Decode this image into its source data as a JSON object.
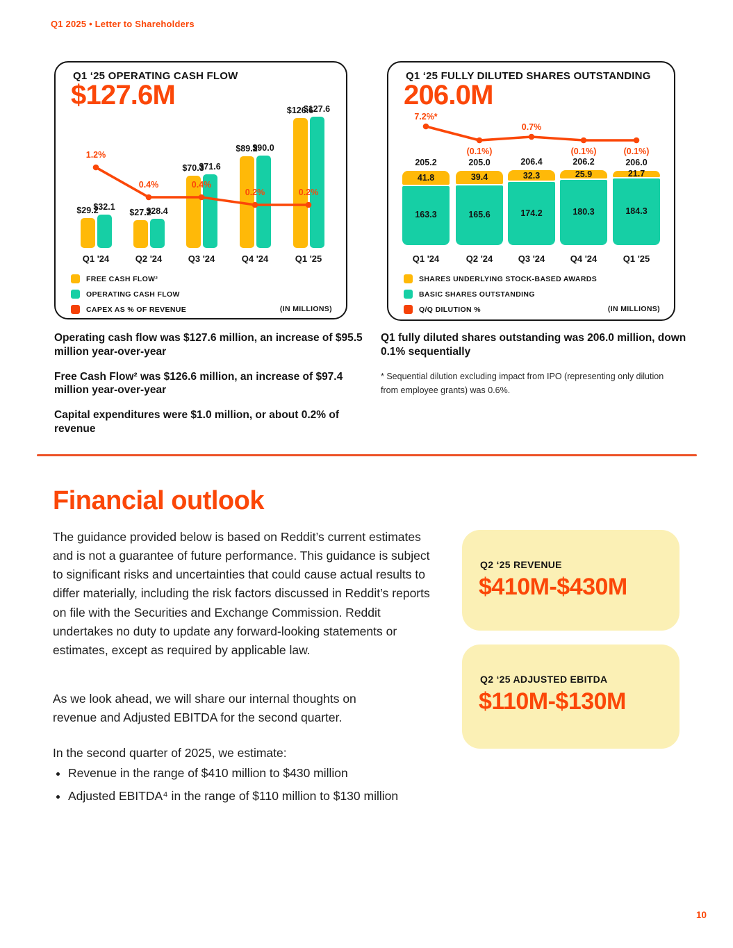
{
  "page": {
    "header": "Q1 2025 • Letter to Shareholders",
    "page_number": "10"
  },
  "colors": {
    "accent": "#FB4708",
    "amber": "#FFB908",
    "teal": "#16CFA5",
    "red": "#F54108",
    "panel_yellow": "#FBF0B5"
  },
  "chart_data": [
    {
      "id": "operating-cash-flow",
      "type": "bar",
      "title": "Q1 ‘25 OPERATING CASH FLOW",
      "headline": "$127.6M",
      "categories": [
        "Q1 '24",
        "Q2 '24",
        "Q3 '24",
        "Q4 '24",
        "Q1 '25"
      ],
      "series": [
        {
          "name": "FREE CASH FLOW²",
          "color": "amber",
          "values": [
            29.2,
            27.2,
            70.3,
            89.2,
            126.6
          ],
          "labels": [
            "$29.2",
            "$27.2",
            "$70.3",
            "$89.2",
            "$126.6"
          ]
        },
        {
          "name": "OPERATING CASH FLOW",
          "color": "teal",
          "values": [
            32.1,
            28.4,
            71.6,
            90.0,
            127.6
          ],
          "labels": [
            "$32.1",
            "$28.4",
            "$71.6",
            "$90.0",
            "$127.6"
          ]
        }
      ],
      "line": {
        "name": "CAPEX AS % OF REVENUE",
        "values": [
          1.2,
          0.4,
          0.4,
          0.2,
          0.2
        ],
        "labels": [
          "1.2%",
          "0.4%",
          "0.4%",
          "0.2%",
          "0.2%"
        ]
      },
      "units_note": "(IN MILLIONS)",
      "grid": false,
      "legend_position": "bottom-left"
    },
    {
      "id": "fully-diluted-shares",
      "type": "bar",
      "subtype": "stacked",
      "title": "Q1 ‘25 FULLY DILUTED SHARES OUTSTANDING",
      "headline": "206.0M",
      "categories": [
        "Q1 '24",
        "Q2 '24",
        "Q3 '24",
        "Q4 '24",
        "Q1 '25"
      ],
      "series": [
        {
          "name": "SHARES UNDERLYING STOCK-BASED AWARDS",
          "color": "amber",
          "values": [
            41.8,
            39.4,
            32.3,
            25.9,
            21.7
          ],
          "labels": [
            "41.8",
            "39.4",
            "32.3",
            "25.9",
            "21.7"
          ]
        },
        {
          "name": "BASIC SHARES OUTSTANDING",
          "color": "teal",
          "values": [
            163.3,
            165.6,
            174.2,
            180.3,
            184.3
          ],
          "labels": [
            "163.3",
            "165.6",
            "174.2",
            "180.3",
            "184.3"
          ]
        }
      ],
      "totals": [
        "205.2",
        "205.0",
        "206.4",
        "206.2",
        "206.0"
      ],
      "line": {
        "name": "Q/Q DILUTION %",
        "values": [
          7.2,
          -0.1,
          0.7,
          -0.1,
          -0.1
        ],
        "labels": [
          "7.2%*",
          "(0.1%)",
          "0.7%",
          "(0.1%)",
          "(0.1%)"
        ]
      },
      "units_note": "(IN MILLIONS)",
      "grid": false,
      "legend_position": "bottom-left"
    }
  ],
  "summaries": {
    "left": [
      "Operating cash flow was $127.6 million, an increase of $95.5 million year-over-year",
      "Free Cash Flow² was $126.6 million, an increase of $97.4 million year-over-year",
      "Capital expenditures were $1.0 million, or about 0.2% of revenue"
    ],
    "right": "Q1 fully diluted shares outstanding was 206.0 million, down 0.1% sequentially",
    "footnote": "* Sequential dilution excluding impact from IPO (representing only dilution from employee grants) was 0.6%."
  },
  "outlook": {
    "heading": "Financial outlook",
    "paragraph1": "The guidance provided below is based on Reddit’s current estimates and is not a guarantee of future performance. This guidance is subject to significant risks and uncertainties that could cause actual results to differ materially, including the risk factors discussed in Reddit’s reports on file with the Securities and Exchange Commission. Reddit undertakes no duty to update any forward-looking statements or estimates, except as required by applicable law.",
    "paragraph2": "As we look ahead, we will share our internal thoughts on revenue and Adjusted EBITDA for the second quarter.",
    "paragraph3": "In the second quarter of 2025, we estimate:",
    "bullets": [
      "Revenue in the range of $410 million to $430 million",
      "Adjusted EBITDA⁴ in the range of $110 million to $130 million"
    ],
    "cards": [
      {
        "label": "Q2 ‘25 REVENUE",
        "value": "$410M-$430M"
      },
      {
        "label": "Q2 ‘25 ADJUSTED EBITDA",
        "value": "$110M-$130M"
      }
    ]
  }
}
